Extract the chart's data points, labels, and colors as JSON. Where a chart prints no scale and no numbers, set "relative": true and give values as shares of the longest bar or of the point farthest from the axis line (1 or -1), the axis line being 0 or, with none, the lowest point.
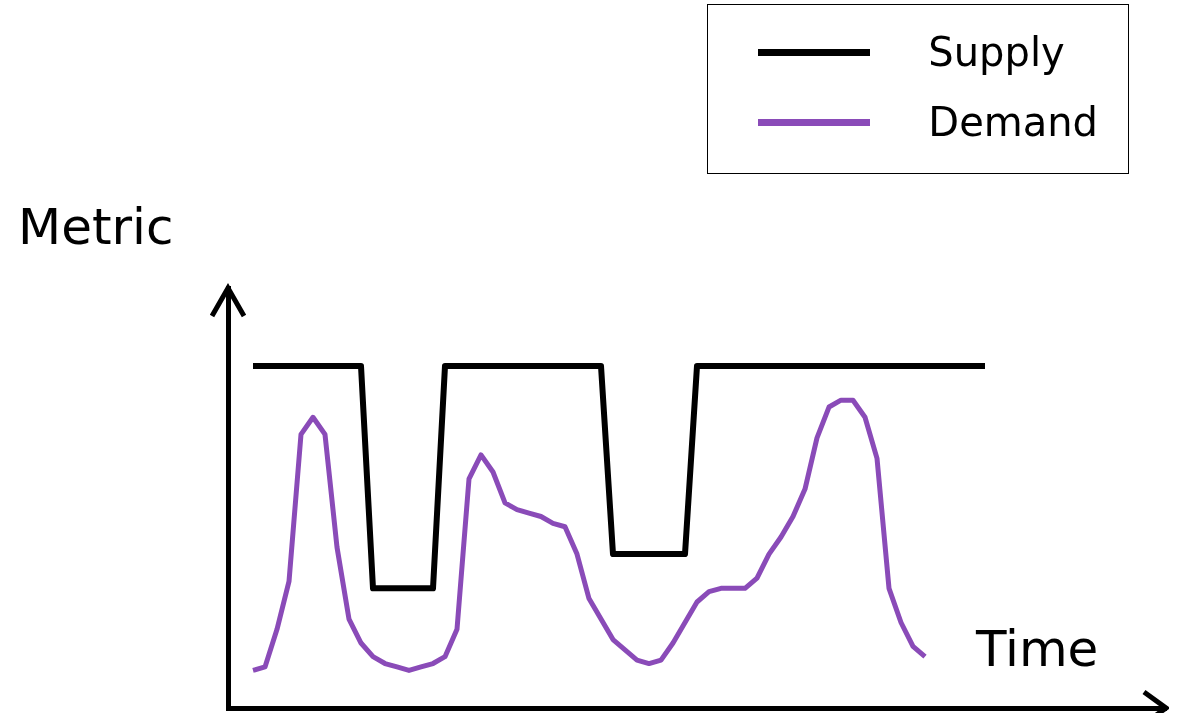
{
  "chart_data": {
    "type": "line",
    "xlabel": "Time",
    "ylabel": "Metric",
    "relative": true,
    "legend": "top right",
    "marker": "none",
    "grid": false,
    "categories": [
      null,
      null,
      null,
      null,
      null,
      null,
      null,
      null,
      null,
      null,
      null,
      null,
      null,
      null,
      null,
      null,
      null,
      null,
      null,
      null,
      null,
      null,
      null,
      null,
      null,
      null,
      null,
      null,
      null,
      null,
      null,
      null,
      null,
      null,
      null,
      null,
      null,
      null,
      null,
      null,
      null,
      null,
      null,
      null,
      null,
      null,
      null,
      null,
      null,
      null,
      null,
      null,
      null,
      null,
      null,
      null,
      null,
      null,
      null,
      null,
      null,
      null
    ],
    "series": [
      {
        "name": "Supply",
        "color": "#000000",
        "values": [
          1,
          1,
          1,
          1,
          1,
          1,
          1,
          1,
          1,
          1,
          0.35,
          0.35,
          0.35,
          0.35,
          0.35,
          0.35,
          1,
          1,
          1,
          1,
          1,
          1,
          1,
          1,
          1,
          1,
          1,
          1,
          1,
          1,
          0.45,
          0.45,
          0.45,
          0.45,
          0.45,
          0.45,
          0.45,
          1,
          1,
          1,
          1,
          1,
          1,
          1,
          1,
          1,
          1,
          1,
          1,
          1,
          1,
          1,
          1,
          1,
          1,
          1,
          1,
          1,
          1,
          1,
          1,
          1
        ]
      },
      {
        "name": "Demand",
        "color": "#8a4bb8",
        "values": [
          0.11,
          0.12,
          0.23,
          0.37,
          0.8,
          0.85,
          0.8,
          0.47,
          0.26,
          0.19,
          0.15,
          0.13,
          0.12,
          0.11,
          0.12,
          0.13,
          0.15,
          0.23,
          0.67,
          0.74,
          0.69,
          0.6,
          0.58,
          0.57,
          0.56,
          0.54,
          0.53,
          0.45,
          0.32,
          0.26,
          0.2,
          0.17,
          0.14,
          0.13,
          0.14,
          0.19,
          0.25,
          0.31,
          0.34,
          0.35,
          0.35,
          0.35,
          0.38,
          0.45,
          0.5,
          0.56,
          0.64,
          0.79,
          0.88,
          0.9,
          0.9,
          0.85,
          0.73,
          0.35,
          0.25,
          0.18,
          0.15,
          null,
          null,
          null,
          null,
          null
        ]
      }
    ]
  }
}
